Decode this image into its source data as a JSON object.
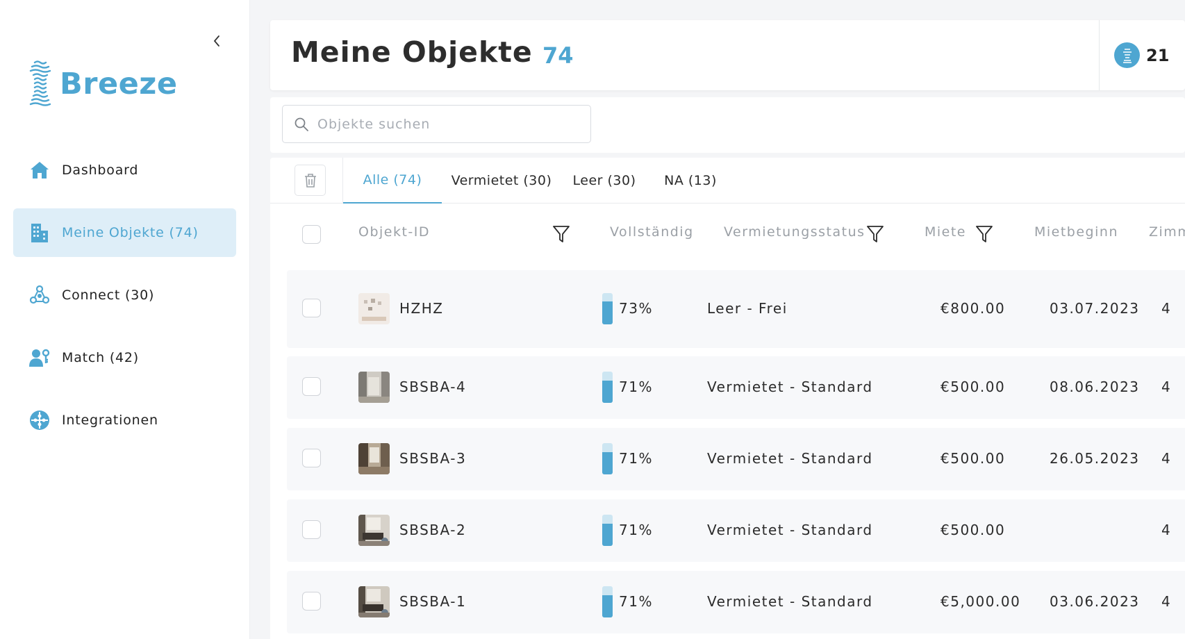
{
  "app": {
    "name": "Breeze"
  },
  "sidebar": {
    "items": [
      {
        "label": "Dashboard",
        "icon": "home-icon",
        "active": false
      },
      {
        "label": "Meine Objekte (74)",
        "icon": "building-icon",
        "active": true
      },
      {
        "label": "Connect (30)",
        "icon": "connect-icon",
        "active": false
      },
      {
        "label": "Match (42)",
        "icon": "match-icon",
        "active": false
      },
      {
        "label": "Integrationen",
        "icon": "puzzle-icon",
        "active": false
      }
    ]
  },
  "header": {
    "title": "Meine Objekte",
    "count": "74",
    "credits": "21"
  },
  "search": {
    "placeholder": "Objekte suchen",
    "value": ""
  },
  "tabs": [
    {
      "label": "Alle (74)",
      "active": true
    },
    {
      "label": "Vermietet (30)",
      "active": false
    },
    {
      "label": "Leer (30)",
      "active": false
    },
    {
      "label": "NA (13)",
      "active": false
    }
  ],
  "table": {
    "columns": [
      "Objekt-ID",
      "Vollständig",
      "Vermietungsstatus",
      "Miete",
      "Mietbeginn",
      "Zimm"
    ],
    "rows": [
      {
        "id": "HZHZ",
        "complete": "73%",
        "complete_value": 0.73,
        "status": "Leer - Frei",
        "rent": "€800.00",
        "start": "03.07.2023",
        "rooms": "4"
      },
      {
        "id": "SBSBA-4",
        "complete": "71%",
        "complete_value": 0.71,
        "status": "Vermietet - Standard",
        "rent": "€500.00",
        "start": "08.06.2023",
        "rooms": "4"
      },
      {
        "id": "SBSBA-3",
        "complete": "71%",
        "complete_value": 0.71,
        "status": "Vermietet - Standard",
        "rent": "€500.00",
        "start": "26.05.2023",
        "rooms": "4"
      },
      {
        "id": "SBSBA-2",
        "complete": "71%",
        "complete_value": 0.71,
        "status": "Vermietet - Standard",
        "rent": "€500.00",
        "start": "",
        "rooms": "4"
      },
      {
        "id": "SBSBA-1",
        "complete": "71%",
        "complete_value": 0.71,
        "status": "Vermietet - Standard",
        "rent": "€5,000.00",
        "start": "03.06.2023",
        "rooms": "4"
      }
    ]
  },
  "colors": {
    "accent": "#4ea6d1",
    "active_bg": "#deeef8",
    "row_bg": "#f7f8fa"
  }
}
